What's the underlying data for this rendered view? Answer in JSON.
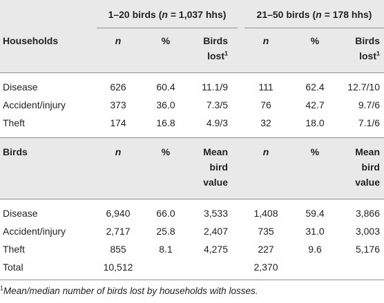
{
  "group_headers": {
    "g1": {
      "prefix": "1–20 birds (",
      "n": "n",
      "suffix": " = 1,037 hhs)"
    },
    "g2": {
      "prefix": "21–50 birds (",
      "n": "n",
      "suffix": " = 178 hhs)"
    }
  },
  "households": {
    "label": "Households",
    "col_n": "n",
    "col_pct": "%",
    "col_lost_1": "Birds",
    "col_lost_2": "lost",
    "col_lost_sup": "1",
    "rows": [
      {
        "label": "Disease",
        "n1": "626",
        "p1": "60.4",
        "b1": "11.1/9",
        "n2": "111",
        "p2": "62.4",
        "b2": "12.7/10"
      },
      {
        "label": "Accident/injury",
        "n1": "373",
        "p1": "36.0",
        "b1": "7.3/5",
        "n2": "76",
        "p2": "42.7",
        "b2": "9.7/6"
      },
      {
        "label": "Theft",
        "n1": "174",
        "p1": "16.8",
        "b1": "4.9/3",
        "n2": "32",
        "p2": "18.0",
        "b2": "7.1/6"
      }
    ]
  },
  "birds": {
    "label": "Birds",
    "col_n": "n",
    "col_pct": "%",
    "col_val_1": "Mean",
    "col_val_2": "bird",
    "col_val_3": "value",
    "rows": [
      {
        "label": "Disease",
        "n1": "6,940",
        "p1": "66.0",
        "v1": "3,533",
        "n2": "1,408",
        "p2": "59.4",
        "v2": "3,866"
      },
      {
        "label": "Accident/injury",
        "n1": "2,717",
        "p1": "25.8",
        "v1": "2,407",
        "n2": "735",
        "p2": "31.0",
        "v2": "3,003"
      },
      {
        "label": "Theft",
        "n1": "855",
        "p1": "8.1",
        "v1": "4,275",
        "n2": "227",
        "p2": "9.6",
        "v2": "5,176"
      },
      {
        "label": "Total",
        "n1": "10,512",
        "p1": "",
        "v1": "",
        "n2": "2,370",
        "p2": "",
        "v2": ""
      }
    ]
  },
  "footnote": {
    "sup": "1",
    "text": "Mean/median number of birds lost by households with losses."
  }
}
